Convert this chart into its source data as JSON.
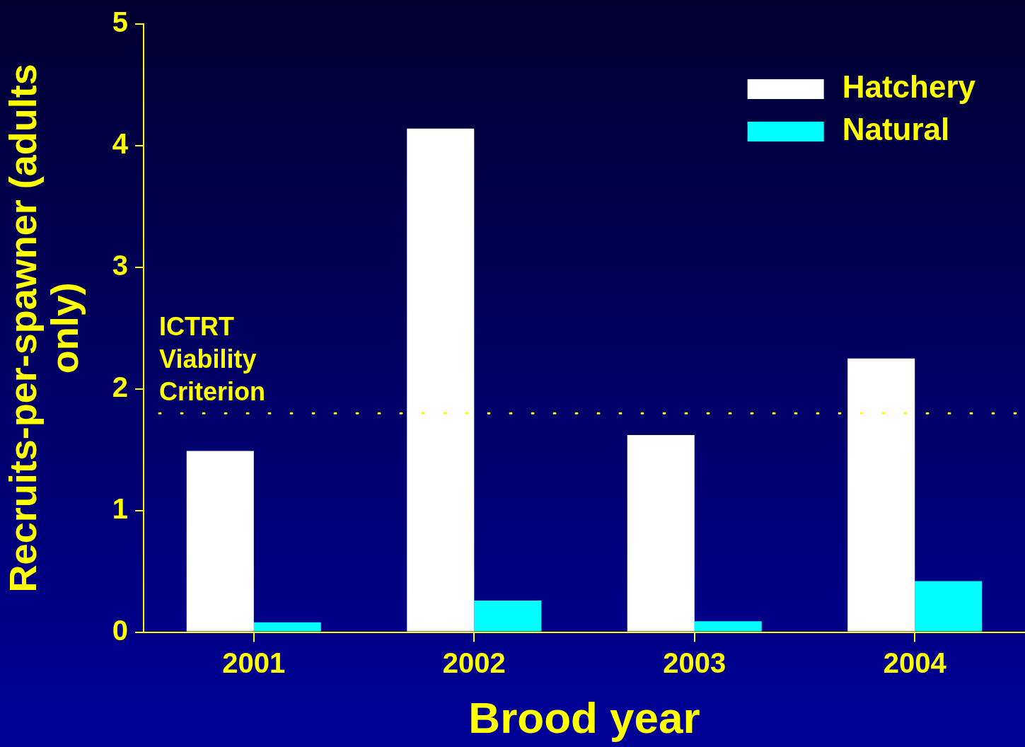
{
  "chart_data": {
    "type": "bar",
    "xlabel": "Brood year",
    "ylabel": "Recruits-per-spawner (adults only)",
    "categories": [
      "2001",
      "2002",
      "2003",
      "2004"
    ],
    "series": [
      {
        "name": "Hatchery",
        "color": "#ffffff",
        "values": [
          1.49,
          4.14,
          1.62,
          2.25
        ]
      },
      {
        "name": "Natural",
        "color": "#00ffff",
        "values": [
          0.08,
          0.26,
          0.09,
          0.42
        ]
      }
    ],
    "ylim": [
      0,
      5
    ],
    "yticks": [
      0,
      1,
      2,
      3,
      4,
      5
    ],
    "grid": false,
    "legend": "top right",
    "ref_lines": [
      {
        "axis": "y",
        "value": 1.8,
        "label": "ICTRT Viability Criterion",
        "color": "#ffff00",
        "line_style": "dotted"
      }
    ]
  }
}
